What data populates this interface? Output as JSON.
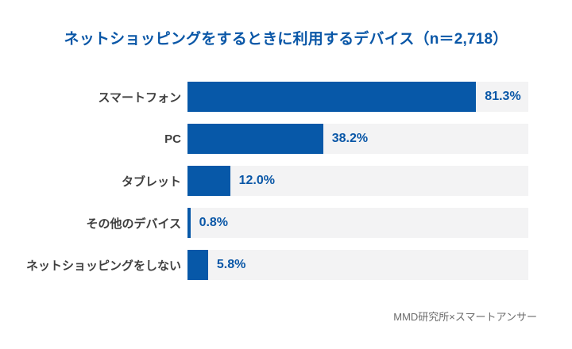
{
  "title": "ネットショッピングをするときに利用するデバイス（n＝2,718）",
  "source": "MMD研究所×スマートアンサー",
  "colors": {
    "bar": "#0758a8",
    "title_text": "#0a57a7",
    "value_text": "#0a57a7",
    "category_text": "#3f3f3f",
    "track_background": "#f3f3f4",
    "source_text": "#6b6b6b",
    "page_background": "#ffffff"
  },
  "chart_data": {
    "type": "bar",
    "orientation": "horizontal",
    "title": "ネットショッピングをするときに利用するデバイス（n＝2,718）",
    "categories": [
      "スマートフォン",
      "PC",
      "タブレット",
      "その他のデバイス",
      "ネットショッピングをしない"
    ],
    "values": [
      81.3,
      38.2,
      12.0,
      0.8,
      5.8
    ],
    "value_labels": [
      "81.3%",
      "38.2%",
      "12.0%",
      "0.8%",
      "5.8%"
    ],
    "n": "2,718",
    "xlabel": "",
    "ylabel": "",
    "xlim": [
      0,
      96
    ],
    "grid": false,
    "legend": "none",
    "annotation": "MMD研究所×スマートアンサー"
  }
}
